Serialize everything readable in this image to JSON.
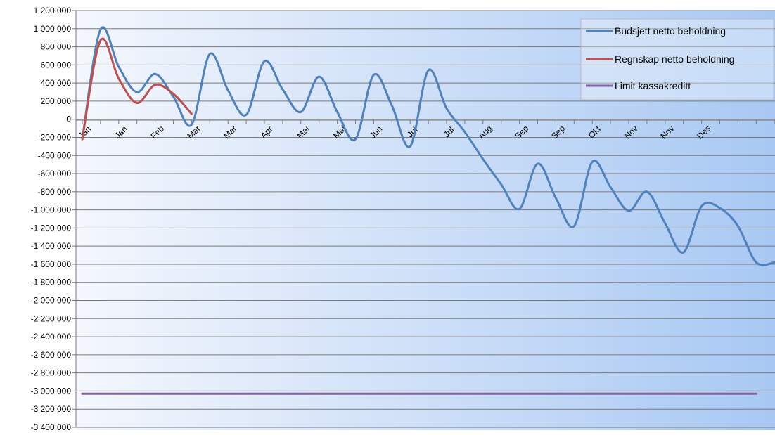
{
  "chart_data": {
    "type": "line",
    "title": "",
    "xlabel": "",
    "ylabel": "",
    "ylim": [
      -3400000,
      1200000
    ],
    "y_step": 200000,
    "ytick_labels": [
      "1 200 000",
      "1 000 000",
      "800 000",
      "600 000",
      "400 000",
      "200 000",
      "0",
      "-200 000",
      "-400 000",
      "-600 000",
      "-800 000",
      "-1 000 000",
      "-1 200 000",
      "-1 400 000",
      "-1 600 000",
      "-1 800 000",
      "-2 000 000",
      "-2 200 000",
      "-2 400 000",
      "-2 600 000",
      "-2 800 000",
      "-3 000 000",
      "-3 200 000",
      "-3 400 000"
    ],
    "x_labels": [
      "Jan",
      "Jan",
      "Feb",
      "Mar",
      "Mar",
      "Apr",
      "Mai",
      "Mai",
      "Jun",
      "Jul",
      "Jul",
      "Aug",
      "Sep",
      "Sep",
      "Okt",
      "Nov",
      "Nov",
      "Des"
    ],
    "grid": true,
    "legend_position": "top-right",
    "series": [
      {
        "name": "Budsjett netto beholdning",
        "color": "#4f81bd",
        "x": [
          0,
          1,
          2,
          3,
          4,
          5,
          6,
          7,
          8,
          9,
          10,
          11,
          12,
          13,
          14,
          15,
          16,
          17,
          18,
          19,
          20,
          21,
          22,
          23,
          24,
          25,
          26,
          27,
          28,
          29,
          30,
          31,
          32,
          33,
          34,
          35,
          36,
          37,
          38
        ],
        "values": [
          -220000,
          990000,
          580000,
          300000,
          500000,
          250000,
          -60000,
          720000,
          320000,
          50000,
          640000,
          330000,
          80000,
          470000,
          80000,
          -220000,
          490000,
          150000,
          -300000,
          540000,
          120000,
          -140000,
          -440000,
          -720000,
          -990000,
          -490000,
          -870000,
          -1180000,
          -470000,
          -750000,
          -1010000,
          -800000,
          -1150000,
          -1470000,
          -960000,
          -980000,
          -1180000,
          -1580000,
          -1580000
        ]
      },
      {
        "name": "Regnskap netto beholdning",
        "color": "#c0504d",
        "x": [
          0,
          1,
          2,
          3,
          4,
          5,
          6
        ],
        "values": [
          -220000,
          870000,
          450000,
          180000,
          380000,
          280000,
          60000
        ]
      },
      {
        "name": "Limit kassakreditt",
        "color": "#8064a2",
        "x": [
          0,
          37
        ],
        "values": [
          -3030000,
          -3030000
        ]
      }
    ]
  }
}
